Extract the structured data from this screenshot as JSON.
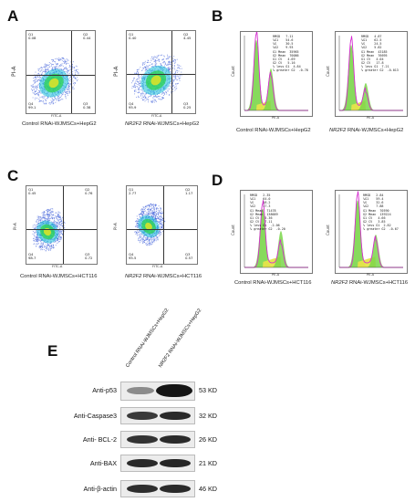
{
  "panels": {
    "A": {
      "letter": "A",
      "left": {
        "caption": "Control RNAi-WJMSCs+HepG2",
        "q1": "Q1",
        "q1v": "0.08",
        "q2": "Q2",
        "q2v": "0.44",
        "q3": "Q3",
        "q3v": "0.38",
        "q4": "Q4",
        "q4v": "99.1",
        "ylabel": "PI-A",
        "xlabel": "FITC-A"
      },
      "right": {
        "caption_em": "NR2F2",
        "caption_rest": " RNAi-WJMSCs+HepG2",
        "q1": "Q1",
        "q1v": "0.40",
        "q2": "Q2",
        "q2v": "4.45",
        "q3": "Q3",
        "q3v": "0.25",
        "q4": "Q4",
        "q4v": "95.9",
        "ylabel": "PI-A",
        "xlabel": "FITC-A"
      }
    },
    "B": {
      "letter": "B",
      "left": {
        "caption": "Control RNAi-WJMSCs+HepG2",
        "ylabel": "Count",
        "xlabel": "PE-A",
        "stats": "RMSD   7.11\n%G1    54.6\n%S     30.5\n%G2    9.93\nG1 Mean  35965\nG2 Mean  70086\nG1 CV   4.69\nG2 CV   5.16\n% less G1  4.84\n% greater G2  -0.78"
      },
      "right": {
        "caption_em": "NR2F2",
        "caption_rest": " RNAi-WJMSCs+HepG2",
        "ylabel": "Count",
        "xlabel": "PE-A",
        "stats": "RMSD   4.87\n%G1    62.5\n%S     24.5\n%G2    5.82\nG1 Mean  43185\nG2 Mean  76695\nG1 CV   4.04\nG2 CV   17.8\n% less G1  7.21\n% greater G2  -0.013"
      }
    },
    "C": {
      "letter": "C",
      "left": {
        "caption": "Control RNAi-WJMSCs+HCT116",
        "q1": "Q1",
        "q1v": "0.45",
        "q2": "Q2",
        "q2v": "0.76",
        "q3": "Q3",
        "q3v": "0.72",
        "q4": "Q4",
        "q4v": "98.7",
        "ylabel": "PI-A",
        "xlabel": "FITC-A"
      },
      "right": {
        "caption_em": "NR2F2",
        "caption_rest": " RNAi-WJMSCs+HCT116",
        "q1": "Q1",
        "q1v": "2.77",
        "q2": "Q2",
        "q2v": "1.17",
        "q3": "Q3",
        "q3v": "0.57",
        "q4": "Q4",
        "q4v": "95.5",
        "ylabel": "PI-A",
        "xlabel": "FITC-A"
      }
    },
    "D": {
      "letter": "D",
      "left": {
        "caption": "Control RNAi-WJMSCs+HCT116",
        "ylabel": "Count",
        "xlabel": "PE-A",
        "stats": "RMSD   2.35\n%G1    64.0\n%S     18.2\n%G2    17.3\nG1 Mean  71478\nG2 Mean  138689\nG1 CV   5.36\nG2 CV   7.11\n% less G1  -2.06\n% greater G2  -0.20"
      },
      "right": {
        "caption_em": "NR2F2",
        "caption_rest": " RNAi-WJMSCs+HCT116",
        "ylabel": "Count",
        "xlabel": "PE-A",
        "stats": "RMSD   2.84\n%G1    59.4\n%S     32.6\n%G2    7.88\nG1 Mean  70590\nG2 Mean  139224\nG1 CV   4.66\nG2 CV   3.85\n% less G1  2.82\n% greater G2  -0.67"
      }
    },
    "E": {
      "letter": "E",
      "lanes": [
        "Control RNAi-WJMSCs+HepG2",
        "NR2F2 RNAi-WJMSCs+HepG2"
      ],
      "rows": [
        {
          "label": "Anti-p53",
          "kd": "53 KD"
        },
        {
          "label": "Anti-Caspase3",
          "kd": "32 KD"
        },
        {
          "label": "Anti- BCL-2",
          "kd": "26 KD"
        },
        {
          "label": "Anti-BAX",
          "kd": "21 KD"
        },
        {
          "label": "Anti-β-actin",
          "kd": "46 KD"
        }
      ]
    }
  },
  "colors": {
    "dot_blue": "#3b5bd8",
    "dot_cyan": "#19c0d8",
    "dot_green": "#2fd25a",
    "dot_yellow": "#d8e22a",
    "hist_magenta": "#d52bd0",
    "hist_blue": "#3d44c8",
    "hist_green": "#7ad64a",
    "hist_yellow": "#e6e44a"
  }
}
